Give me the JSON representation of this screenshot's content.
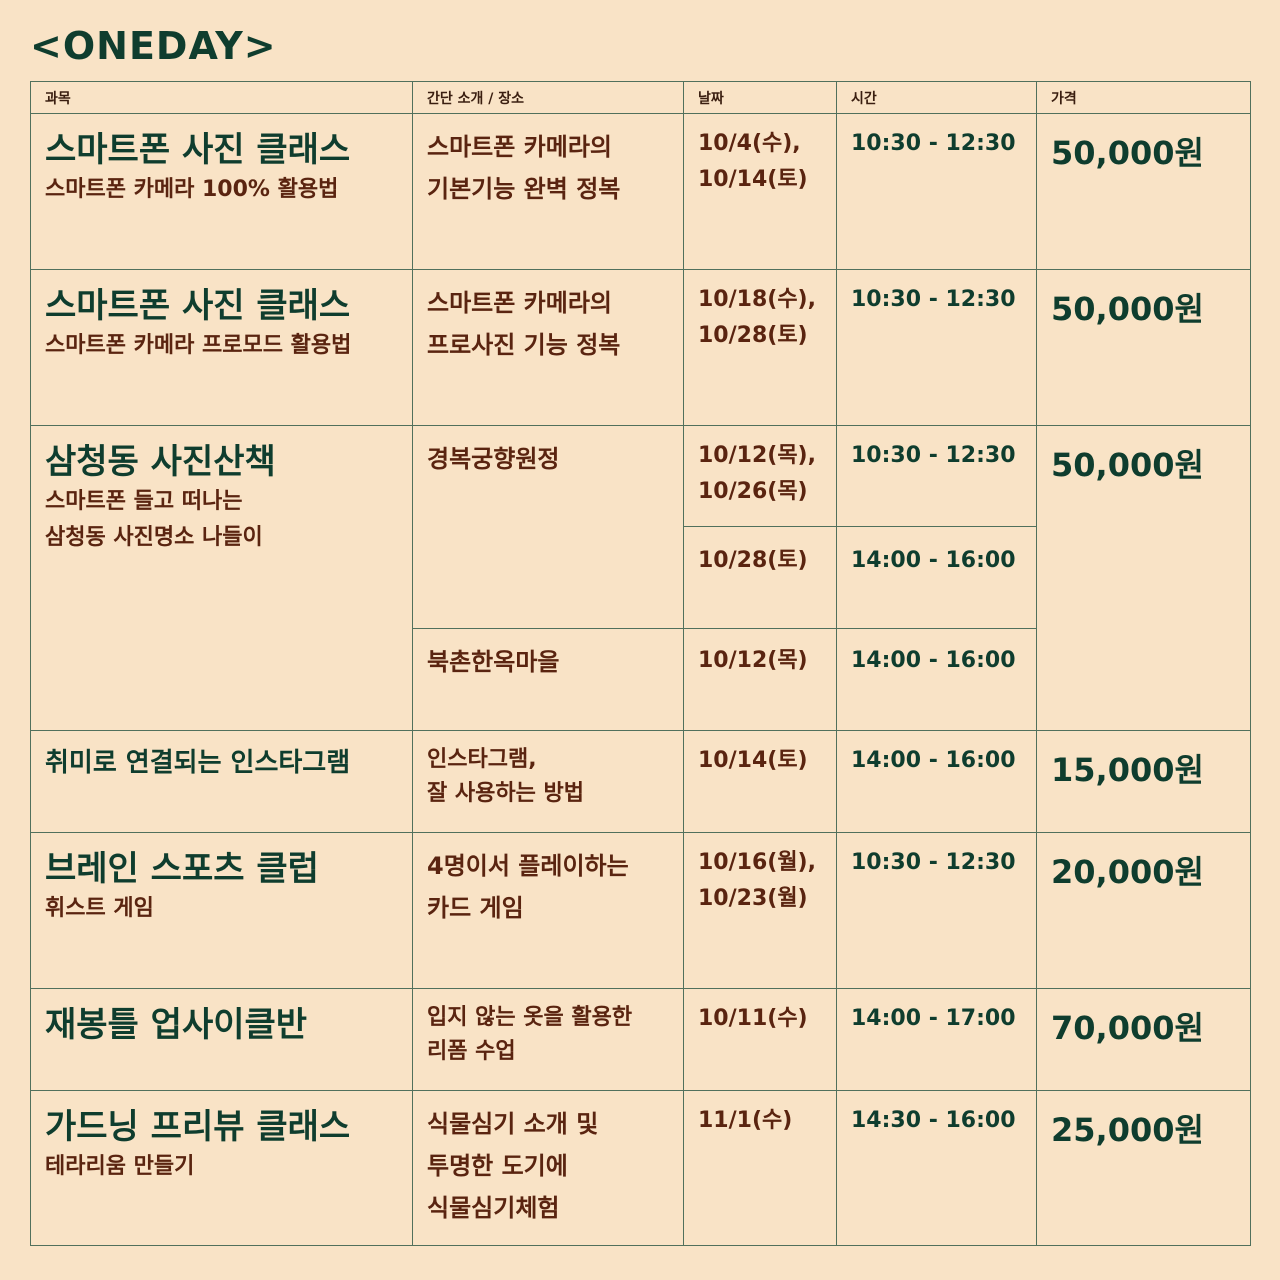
{
  "title": "<ONEDAY>",
  "headers": [
    "과목",
    "간단 소개 / 장소",
    "날짜",
    "시간",
    "가격"
  ],
  "rows": [
    {
      "name": "스마트폰 사진 클래스",
      "sub": "스마트폰 카메라 100% 활용법",
      "desc": "스마트폰 카메라의\n기본기능 완벽 정복",
      "date": "10/4(수),\n10/14(토)",
      "time": "10:30 - 12:30",
      "price": "50,000원"
    },
    {
      "name": "스마트폰 사진 클래스",
      "sub": "스마트폰 카메라 프로모드 활용법",
      "desc": "스마트폰 카메라의\n프로사진 기능 정복",
      "date": "10/18(수),\n10/28(토)",
      "time": "10:30 - 12:30",
      "price": "50,000원"
    },
    {
      "name": "삼청동 사진산책",
      "sub": "스마트폰 들고 떠나는\n삼청동 사진명소 나들이",
      "price": "50,000원",
      "places": [
        {
          "desc": "경복궁향원정",
          "sessions": [
            {
              "date": "10/12(목),\n10/26(목)",
              "time": "10:30 - 12:30"
            },
            {
              "date": "10/28(토)",
              "time": "14:00 - 16:00"
            }
          ]
        },
        {
          "desc": "북촌한옥마을",
          "sessions": [
            {
              "date": "10/12(목)",
              "time": "14:00 - 16:00"
            }
          ]
        }
      ]
    },
    {
      "name": "취미로 연결되는 인스타그램",
      "desc": "인스타그램,\n잘 사용하는 방법",
      "date": "10/14(토)",
      "time": "14:00 - 16:00",
      "price": "15,000원"
    },
    {
      "name": "브레인 스포츠 클럽",
      "sub": "휘스트 게임",
      "desc": "4명이서 플레이하는\n카드 게임",
      "date": "10/16(월),\n10/23(월)",
      "time": "10:30 - 12:30",
      "price": "20,000원"
    },
    {
      "name": "재봉틀 업사이클반",
      "desc": "입지 않는 옷을 활용한\n리폼 수업",
      "date": "10/11(수)",
      "time": "14:00 - 17:00",
      "price": "70,000원"
    },
    {
      "name": "가드닝 프리뷰 클래스",
      "sub": "테라리움 만들기",
      "desc": "식물심기 소개 및\n투명한 도기에\n식물심기체험",
      "date": "11/1(수)",
      "time": "14:30 - 16:00",
      "price": "25,000원"
    }
  ]
}
